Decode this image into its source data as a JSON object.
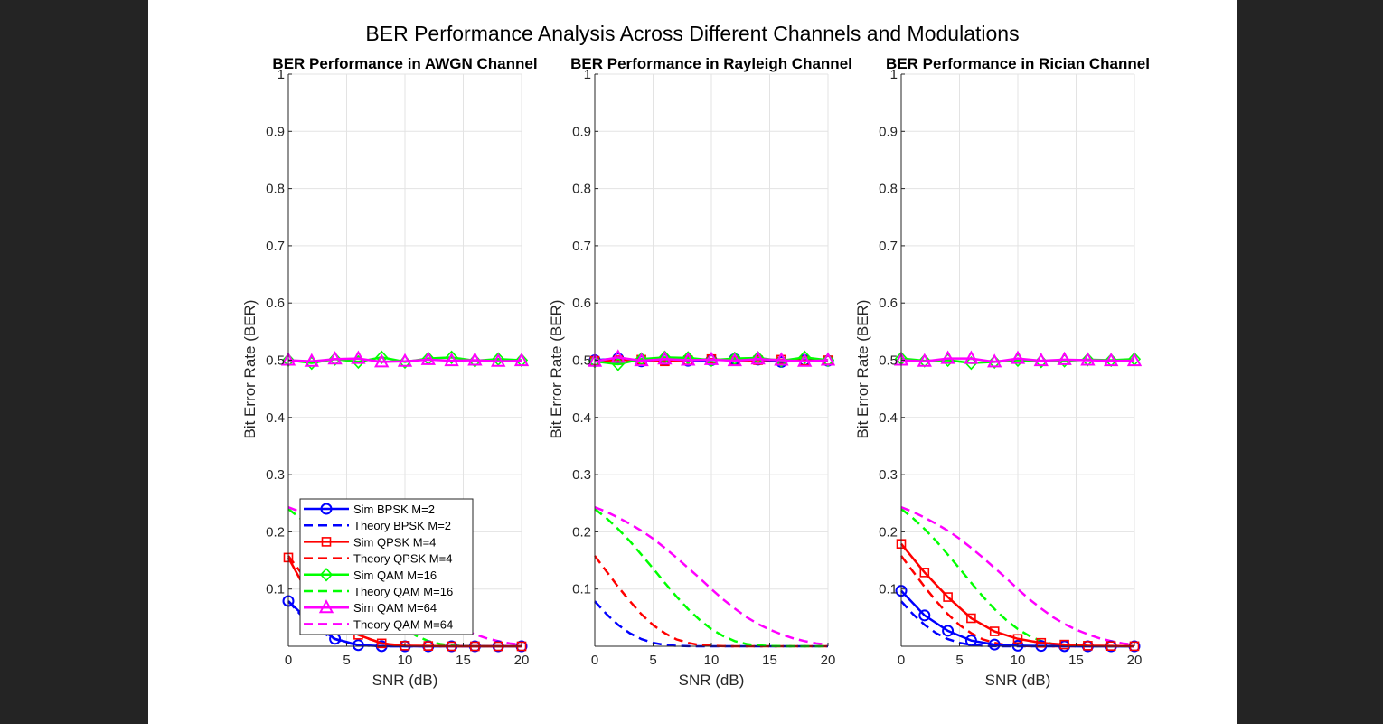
{
  "figure": {
    "suptitle": "BER Performance Analysis Across Different Channels and Modulations"
  },
  "colors": {
    "bpsk": "#0000ff",
    "qpsk": "#ff0000",
    "qam16": "#00ff00",
    "qam64": "#ff00ff"
  },
  "chart_data": [
    {
      "type": "line",
      "title": "BER Performance in AWGN Channel",
      "xlabel": "SNR (dB)",
      "ylabel": "Bit Error Rate (BER)",
      "xlim": [
        0,
        20
      ],
      "ylim": [
        0,
        1
      ],
      "xticks": [
        0,
        5,
        10,
        15,
        20
      ],
      "yticks": [
        0.1,
        0.2,
        0.3,
        0.4,
        0.5,
        0.6,
        0.7,
        0.8,
        0.9,
        1
      ],
      "grid": true,
      "legend": "bottom-left",
      "series": [
        {
          "name": "Sim BPSK M=2",
          "style": "sim",
          "color": "#0000ff",
          "marker": "circle",
          "x": [
            0,
            2,
            4,
            6,
            8,
            10,
            12,
            14,
            16,
            18,
            20
          ],
          "y": [
            0.079,
            0.04,
            0.013,
            0.002,
            0.0002,
            0,
            0,
            0,
            0,
            0,
            0
          ]
        },
        {
          "name": "Theory BPSK M=2",
          "style": "theory",
          "color": "#0000ff",
          "x": [
            0,
            1,
            2,
            3,
            4,
            5,
            6,
            7,
            8,
            9,
            10,
            11,
            12,
            13,
            14,
            15,
            16,
            17,
            18,
            19,
            20
          ],
          "y": [
            0.0786,
            0.0563,
            0.0375,
            0.0229,
            0.0125,
            0.006,
            0.0024,
            0.0008,
            0.0002,
            3e-05,
            0,
            0,
            0,
            0,
            0,
            0,
            0,
            0,
            0,
            0,
            0
          ]
        },
        {
          "name": "Sim QPSK M=4",
          "style": "sim",
          "color": "#ff0000",
          "marker": "square",
          "x": [
            0,
            2,
            4,
            6,
            8,
            10,
            12,
            14,
            16,
            18,
            20
          ],
          "y": [
            0.155,
            0.08,
            0.04,
            0.02,
            0.005,
            0.001,
            0.0006,
            0,
            0,
            0,
            0
          ]
        },
        {
          "name": "Theory QPSK M=4",
          "style": "theory",
          "color": "#ff0000",
          "x": [
            0,
            1,
            2,
            3,
            4,
            5,
            6,
            7,
            8,
            9,
            10,
            11,
            12,
            13,
            14,
            15,
            16,
            17,
            18,
            19,
            20
          ],
          "y": [
            0.158,
            0.131,
            0.104,
            0.079,
            0.056,
            0.037,
            0.023,
            0.012,
            0.006,
            0.002,
            0.001,
            0.0002,
            0,
            0,
            0,
            0,
            0,
            0,
            0,
            0,
            0
          ]
        },
        {
          "name": "Sim QAM M=16",
          "style": "sim",
          "color": "#00ff00",
          "marker": "diamond",
          "x": [
            0,
            2,
            4,
            6,
            8,
            10,
            12,
            14,
            16,
            18,
            20
          ],
          "y": [
            0.5,
            0.495,
            0.502,
            0.497,
            0.505,
            0.497,
            0.503,
            0.505,
            0.499,
            0.502,
            0.5
          ]
        },
        {
          "name": "Theory QAM M=16",
          "style": "theory",
          "color": "#00ff00",
          "x": [
            0,
            1,
            2,
            3,
            4,
            5,
            6,
            7,
            8,
            9,
            10,
            11,
            12,
            13,
            14,
            15,
            16,
            17,
            18,
            19,
            20
          ],
          "y": [
            0.24,
            0.224,
            0.205,
            0.184,
            0.16,
            0.136,
            0.111,
            0.087,
            0.065,
            0.046,
            0.03,
            0.018,
            0.009,
            0.004,
            0.0015,
            0.0004,
            0.0001,
            0,
            0,
            0,
            0
          ]
        },
        {
          "name": "Sim QAM M=64",
          "style": "sim",
          "color": "#ff00ff",
          "marker": "triangle",
          "x": [
            0,
            2,
            4,
            6,
            8,
            10,
            12,
            14,
            16,
            18,
            20
          ],
          "y": [
            0.5,
            0.498,
            0.502,
            0.503,
            0.497,
            0.498,
            0.501,
            0.499,
            0.5,
            0.498,
            0.499
          ]
        },
        {
          "name": "Theory QAM M=64",
          "style": "theory",
          "color": "#ff00ff",
          "x": [
            0,
            1,
            2,
            3,
            4,
            5,
            6,
            7,
            8,
            9,
            10,
            11,
            12,
            13,
            14,
            15,
            16,
            17,
            18,
            19,
            20
          ],
          "y": [
            0.243,
            0.235,
            0.225,
            0.214,
            0.202,
            0.188,
            0.172,
            0.155,
            0.137,
            0.119,
            0.1,
            0.082,
            0.066,
            0.051,
            0.039,
            0.029,
            0.021,
            0.014,
            0.009,
            0.005,
            0.003
          ]
        }
      ]
    },
    {
      "type": "line",
      "title": "BER Performance in Rayleigh Channel",
      "xlabel": "SNR (dB)",
      "ylabel": "Bit Error Rate (BER)",
      "xlim": [
        0,
        20
      ],
      "ylim": [
        0,
        1
      ],
      "xticks": [
        0,
        5,
        10,
        15,
        20
      ],
      "yticks": [
        0.1,
        0.2,
        0.3,
        0.4,
        0.5,
        0.6,
        0.7,
        0.8,
        0.9,
        1
      ],
      "grid": true,
      "series": [
        {
          "name": "Sim BPSK M=2",
          "style": "sim",
          "color": "#0000ff",
          "marker": "circle",
          "x": [
            0,
            2,
            4,
            6,
            8,
            10,
            12,
            14,
            16,
            18,
            20
          ],
          "y": [
            0.5,
            0.503,
            0.498,
            0.501,
            0.499,
            0.5,
            0.502,
            0.501,
            0.497,
            0.5,
            0.499
          ]
        },
        {
          "name": "Theory BPSK M=2",
          "style": "theory",
          "color": "#0000ff",
          "x": [
            0,
            1,
            2,
            3,
            4,
            5,
            6,
            7,
            8,
            9,
            10,
            11,
            12,
            13,
            14,
            15,
            16,
            17,
            18,
            19,
            20
          ],
          "y": [
            0.0786,
            0.0563,
            0.0375,
            0.0229,
            0.0125,
            0.006,
            0.0024,
            0.0008,
            0.0002,
            3e-05,
            0,
            0,
            0,
            0,
            0,
            0,
            0,
            0,
            0,
            0,
            0
          ]
        },
        {
          "name": "Sim QPSK M=4",
          "style": "sim",
          "color": "#ff0000",
          "marker": "square",
          "x": [
            0,
            2,
            4,
            6,
            8,
            10,
            12,
            14,
            16,
            18,
            20
          ],
          "y": [
            0.499,
            0.5,
            0.501,
            0.498,
            0.5,
            0.502,
            0.499,
            0.5,
            0.501,
            0.499,
            0.5
          ]
        },
        {
          "name": "Theory QPSK M=4",
          "style": "theory",
          "color": "#ff0000",
          "x": [
            0,
            1,
            2,
            3,
            4,
            5,
            6,
            7,
            8,
            9,
            10,
            11,
            12,
            13,
            14,
            15,
            16,
            17,
            18,
            19,
            20
          ],
          "y": [
            0.158,
            0.131,
            0.104,
            0.079,
            0.056,
            0.037,
            0.023,
            0.012,
            0.006,
            0.002,
            0.001,
            0.0002,
            0,
            0,
            0,
            0,
            0,
            0,
            0,
            0,
            0
          ]
        },
        {
          "name": "Sim QAM M=16",
          "style": "sim",
          "color": "#00ff00",
          "marker": "diamond",
          "x": [
            0,
            2,
            4,
            6,
            8,
            10,
            12,
            14,
            16,
            18,
            20
          ],
          "y": [
            0.498,
            0.493,
            0.502,
            0.505,
            0.504,
            0.5,
            0.503,
            0.504,
            0.499,
            0.505,
            0.5
          ]
        },
        {
          "name": "Theory QAM M=16",
          "style": "theory",
          "color": "#00ff00",
          "x": [
            0,
            1,
            2,
            3,
            4,
            5,
            6,
            7,
            8,
            9,
            10,
            11,
            12,
            13,
            14,
            15,
            16,
            17,
            18,
            19,
            20
          ],
          "y": [
            0.24,
            0.224,
            0.205,
            0.184,
            0.16,
            0.136,
            0.111,
            0.087,
            0.065,
            0.046,
            0.03,
            0.018,
            0.009,
            0.004,
            0.0015,
            0.0004,
            0.0001,
            0,
            0,
            0,
            0
          ]
        },
        {
          "name": "Sim QAM M=64",
          "style": "sim",
          "color": "#ff00ff",
          "marker": "triangle",
          "x": [
            0,
            2,
            4,
            6,
            8,
            10,
            12,
            14,
            16,
            18,
            20
          ],
          "y": [
            0.498,
            0.505,
            0.499,
            0.502,
            0.5,
            0.501,
            0.499,
            0.502,
            0.5,
            0.498,
            0.5
          ]
        },
        {
          "name": "Theory QAM M=64",
          "style": "theory",
          "color": "#ff00ff",
          "x": [
            0,
            1,
            2,
            3,
            4,
            5,
            6,
            7,
            8,
            9,
            10,
            11,
            12,
            13,
            14,
            15,
            16,
            17,
            18,
            19,
            20
          ],
          "y": [
            0.243,
            0.235,
            0.225,
            0.214,
            0.202,
            0.188,
            0.172,
            0.155,
            0.137,
            0.119,
            0.1,
            0.082,
            0.066,
            0.051,
            0.039,
            0.029,
            0.021,
            0.014,
            0.009,
            0.005,
            0.003
          ]
        }
      ]
    },
    {
      "type": "line",
      "title": "BER Performance in Rician Channel",
      "xlabel": "SNR (dB)",
      "ylabel": "Bit Error Rate (BER)",
      "xlim": [
        0,
        20
      ],
      "ylim": [
        0,
        1
      ],
      "xticks": [
        0,
        5,
        10,
        15,
        20
      ],
      "yticks": [
        0.1,
        0.2,
        0.3,
        0.4,
        0.5,
        0.6,
        0.7,
        0.8,
        0.9,
        1
      ],
      "grid": true,
      "series": [
        {
          "name": "Sim BPSK M=2",
          "style": "sim",
          "color": "#0000ff",
          "marker": "circle",
          "x": [
            0,
            2,
            4,
            6,
            8,
            10,
            12,
            14,
            16,
            18,
            20
          ],
          "y": [
            0.097,
            0.054,
            0.027,
            0.01,
            0.003,
            0.001,
            0.0005,
            0.0002,
            0,
            0,
            0
          ]
        },
        {
          "name": "Theory BPSK M=2",
          "style": "theory",
          "color": "#0000ff",
          "x": [
            0,
            1,
            2,
            3,
            4,
            5,
            6,
            7,
            8,
            9,
            10,
            11,
            12,
            13,
            14,
            15,
            16,
            17,
            18,
            19,
            20
          ],
          "y": [
            0.0786,
            0.0563,
            0.0375,
            0.0229,
            0.0125,
            0.006,
            0.0024,
            0.0008,
            0.0002,
            3e-05,
            0,
            0,
            0,
            0,
            0,
            0,
            0,
            0,
            0,
            0,
            0
          ]
        },
        {
          "name": "Sim QPSK M=4",
          "style": "sim",
          "color": "#ff0000",
          "marker": "square",
          "x": [
            0,
            2,
            4,
            6,
            8,
            10,
            12,
            14,
            16,
            18,
            20
          ],
          "y": [
            0.179,
            0.129,
            0.086,
            0.049,
            0.026,
            0.013,
            0.006,
            0.003,
            0.001,
            0.0005,
            0.0002
          ]
        },
        {
          "name": "Theory QPSK M=4",
          "style": "theory",
          "color": "#ff0000",
          "x": [
            0,
            1,
            2,
            3,
            4,
            5,
            6,
            7,
            8,
            9,
            10,
            11,
            12,
            13,
            14,
            15,
            16,
            17,
            18,
            19,
            20
          ],
          "y": [
            0.158,
            0.131,
            0.104,
            0.079,
            0.056,
            0.037,
            0.023,
            0.012,
            0.006,
            0.002,
            0.001,
            0.0002,
            0,
            0,
            0,
            0,
            0,
            0,
            0,
            0,
            0
          ]
        },
        {
          "name": "Sim QAM M=16",
          "style": "sim",
          "color": "#00ff00",
          "marker": "diamond",
          "x": [
            0,
            2,
            4,
            6,
            8,
            10,
            12,
            14,
            16,
            18,
            20
          ],
          "y": [
            0.503,
            0.499,
            0.5,
            0.495,
            0.497,
            0.5,
            0.498,
            0.499,
            0.501,
            0.5,
            0.502
          ]
        },
        {
          "name": "Theory QAM M=16",
          "style": "theory",
          "color": "#00ff00",
          "x": [
            0,
            1,
            2,
            3,
            4,
            5,
            6,
            7,
            8,
            9,
            10,
            11,
            12,
            13,
            14,
            15,
            16,
            17,
            18,
            19,
            20
          ],
          "y": [
            0.24,
            0.224,
            0.205,
            0.184,
            0.16,
            0.136,
            0.111,
            0.087,
            0.065,
            0.046,
            0.03,
            0.018,
            0.009,
            0.004,
            0.0015,
            0.0004,
            0.0001,
            0,
            0,
            0,
            0
          ]
        },
        {
          "name": "Sim QAM M=64",
          "style": "sim",
          "color": "#ff00ff",
          "marker": "triangle",
          "x": [
            0,
            2,
            4,
            6,
            8,
            10,
            12,
            14,
            16,
            18,
            20
          ],
          "y": [
            0.5,
            0.498,
            0.503,
            0.503,
            0.497,
            0.503,
            0.499,
            0.501,
            0.5,
            0.499,
            0.499
          ]
        },
        {
          "name": "Theory QAM M=64",
          "style": "theory",
          "color": "#ff00ff",
          "x": [
            0,
            1,
            2,
            3,
            4,
            5,
            6,
            7,
            8,
            9,
            10,
            11,
            12,
            13,
            14,
            15,
            16,
            17,
            18,
            19,
            20
          ],
          "y": [
            0.243,
            0.235,
            0.225,
            0.214,
            0.202,
            0.188,
            0.172,
            0.155,
            0.137,
            0.119,
            0.1,
            0.082,
            0.066,
            0.051,
            0.039,
            0.029,
            0.021,
            0.014,
            0.009,
            0.005,
            0.003
          ]
        }
      ]
    }
  ]
}
